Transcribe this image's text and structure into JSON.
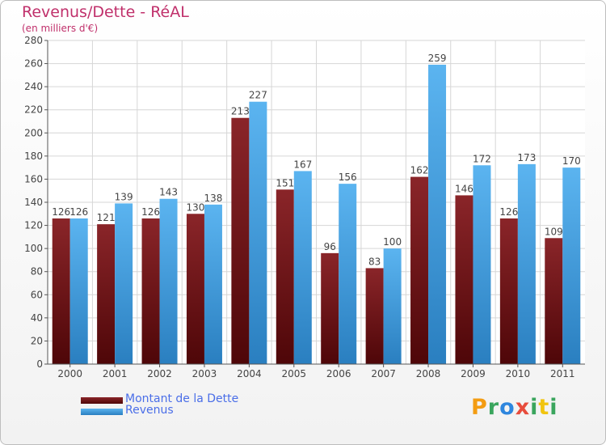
{
  "title": "Revenus/Dette - RéAL",
  "subtitle": "(en milliers d'€)",
  "colors": {
    "dette": "#7a1a1d",
    "dette_dark": "#5a0e10",
    "revenus": "#4aa6e6",
    "revenus_dark": "#2f86c8",
    "title": "#c0306b",
    "legend_text": "#4a6ee8"
  },
  "logo": {
    "letters": [
      "P",
      "r",
      "o",
      "x",
      "i",
      "t",
      "i"
    ],
    "colors": [
      "#f39c12",
      "#3aa55d",
      "#2e86de",
      "#e74c3c",
      "#3aa55d",
      "#f1c40f",
      "#3aa55d"
    ]
  },
  "chart_data": {
    "type": "bar",
    "categories": [
      "2000",
      "2001",
      "2002",
      "2003",
      "2004",
      "2005",
      "2006",
      "2007",
      "2008",
      "2009",
      "2010",
      "2011"
    ],
    "series": [
      {
        "name": "Montant de la Dette",
        "values": [
          126,
          121,
          126,
          130,
          213,
          151,
          96,
          83,
          162,
          146,
          126,
          109
        ]
      },
      {
        "name": "Revenus",
        "values": [
          126,
          139,
          143,
          138,
          227,
          167,
          156,
          100,
          259,
          172,
          173,
          170
        ]
      }
    ],
    "title": "Revenus/Dette - RéAL",
    "subtitle": "(en milliers d'€)",
    "ylim": [
      0,
      280
    ],
    "yticks": [
      0,
      20,
      40,
      60,
      80,
      100,
      120,
      140,
      160,
      180,
      200,
      220,
      240,
      260,
      280
    ],
    "grid": true,
    "legend": "bottom-left"
  }
}
